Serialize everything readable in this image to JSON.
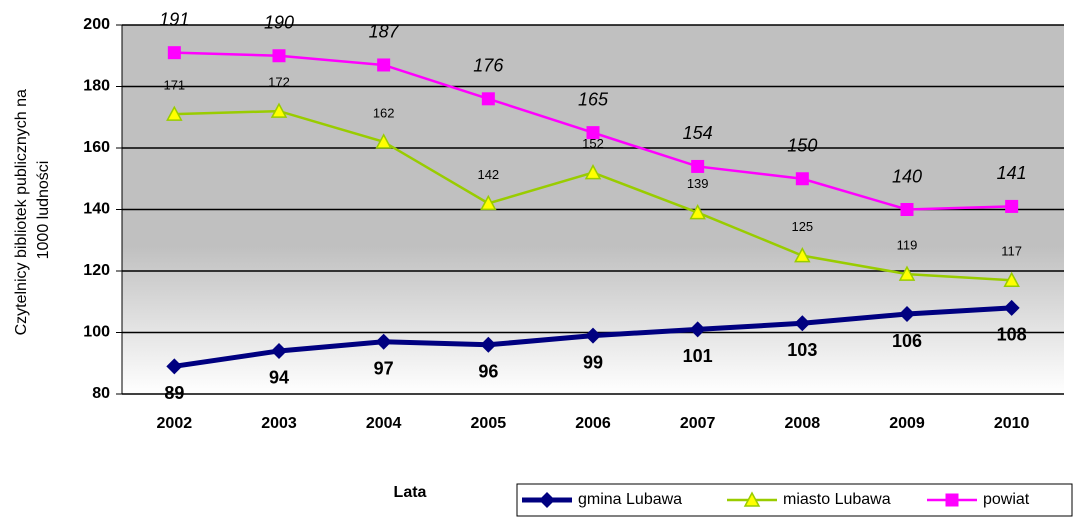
{
  "chart_data": {
    "type": "line",
    "ylabel": [
      "Czytelnicy bibliotek publicznych na",
      "1000 ludności"
    ],
    "xlabel": "Lata",
    "categories": [
      "2002",
      "2003",
      "2004",
      "2005",
      "2006",
      "2007",
      "2008",
      "2009",
      "2010"
    ],
    "series": [
      {
        "name": "gmina Lubawa",
        "color": "#000080",
        "marker": "diamond",
        "values": [
          89,
          94,
          97,
          96,
          99,
          101,
          103,
          106,
          108
        ]
      },
      {
        "name": "miasto Lubawa",
        "color": "#99cc00",
        "marker": "triangle",
        "values": [
          171,
          172,
          162,
          142,
          152,
          139,
          125,
          119,
          117
        ]
      },
      {
        "name": "powiat",
        "color": "#ff00ff",
        "marker": "square",
        "values": [
          191,
          190,
          187,
          176,
          165,
          154,
          150,
          140,
          141
        ]
      }
    ],
    "ylim": [
      80,
      200
    ],
    "yticks": [
      80,
      100,
      120,
      140,
      160,
      180,
      200
    ],
    "grid": true,
    "legend": "bottom-right"
  }
}
